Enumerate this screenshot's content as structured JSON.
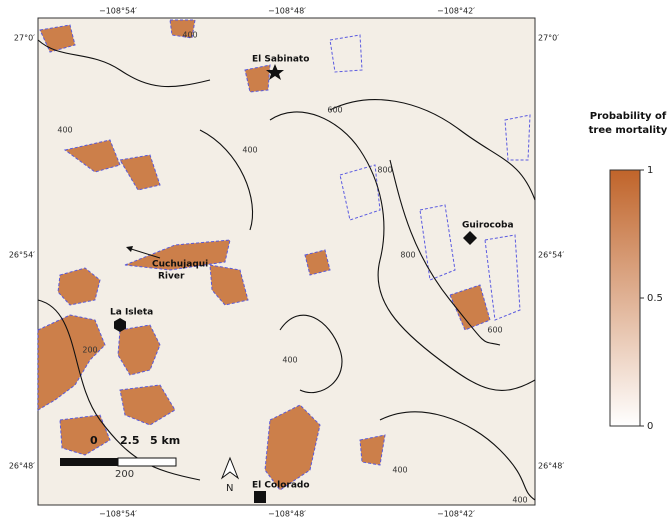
{
  "map": {
    "top_labels": [
      "−108°54′",
      "−108°48′",
      "−108°42′"
    ],
    "bottom_labels": [
      "−108°54′",
      "−108°48′",
      "−108°42′"
    ],
    "left_labels": [
      "27°0′",
      "26°54′",
      "26°48′"
    ],
    "right_labels": [
      "27°0′",
      "26°54′",
      "26°48′"
    ],
    "places": [
      "El Sabinato",
      "Guirocoba",
      "La Isleta",
      "El Colorado"
    ],
    "river_label": [
      "Cuchujaqui",
      "River"
    ],
    "contour_labels": [
      "400",
      "400",
      "400",
      "600",
      "800",
      "800",
      "600",
      "200",
      "400",
      "400",
      "400"
    ],
    "scale_labels": [
      "0",
      "2.5",
      "5 km"
    ],
    "scale_contour": "200",
    "north": "N"
  },
  "legend": {
    "title": [
      "Probability of",
      "tree mortality"
    ],
    "lim": [
      0,
      1
    ],
    "ticks": [
      0,
      0.5,
      1
    ]
  }
}
